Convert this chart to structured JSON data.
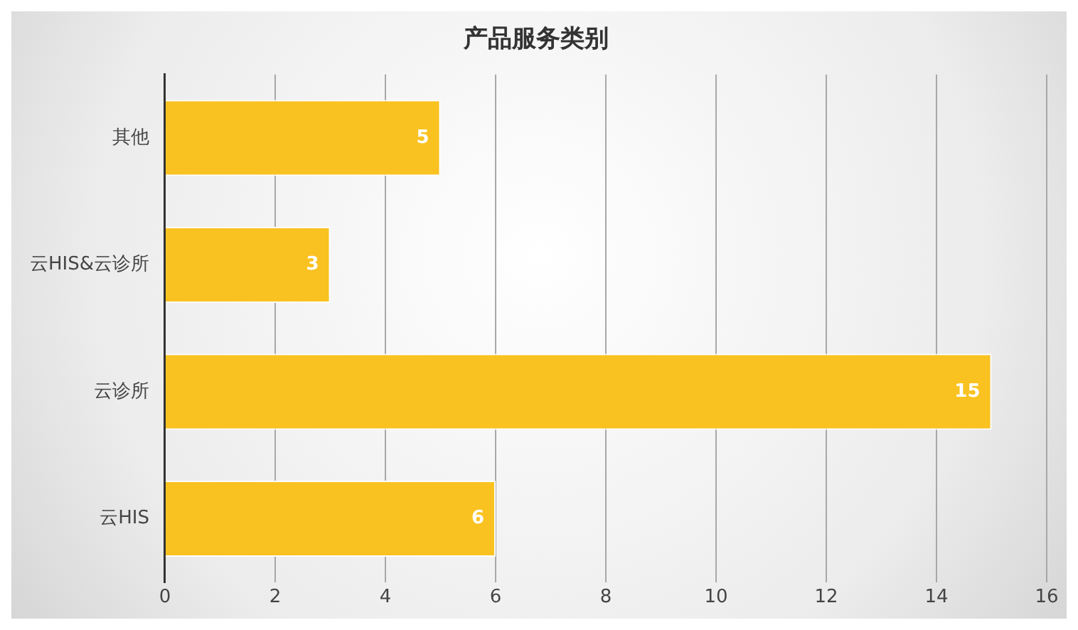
{
  "chart_data": {
    "type": "bar",
    "orientation": "horizontal",
    "title": "产品服务类别",
    "categories": [
      "其他",
      "云HIS&云诊所",
      "云诊所",
      "云HIS"
    ],
    "values": [
      5,
      3,
      15,
      6
    ],
    "color": "#f9c220",
    "xlim": [
      0,
      16
    ],
    "xticks": [
      0,
      2,
      4,
      6,
      8,
      10,
      12,
      14,
      16
    ],
    "grid": "x",
    "data_labels": true,
    "legend": false
  }
}
